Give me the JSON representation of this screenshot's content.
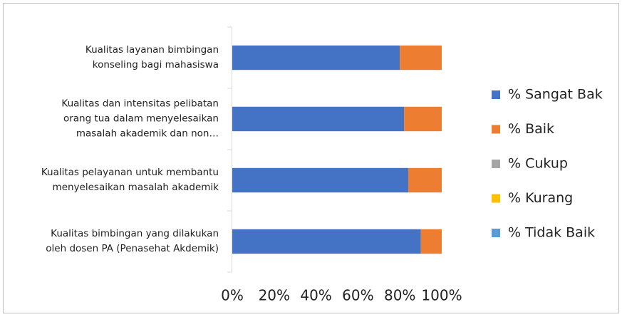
{
  "chart_data": {
    "type": "stacked_barh",
    "categories": [
      "Kualitas layanan bimbingan\nkonseling bagi mahasiswa",
      "Kualitas dan intensitas pelibatan\norang tua dalam menyelesaikan\nmasalah akademik dan non…",
      "Kualitas pelayanan untuk membantu\nmenyelesaikan masalah akademik",
      "Kualitas bimbingan yang dilakukan\noleh dosen PA (Penasehat Akdemik)"
    ],
    "series": [
      {
        "name": "% Sangat Bak",
        "color": "#4472c4",
        "values": [
          80,
          82,
          84,
          90
        ]
      },
      {
        "name": "% Baik",
        "color": "#ed7d31",
        "values": [
          20,
          18,
          16,
          10
        ]
      },
      {
        "name": "% Cukup",
        "color": "#a5a5a5",
        "values": [
          0,
          0,
          0,
          0
        ]
      },
      {
        "name": "% Kurang",
        "color": "#ffc000",
        "values": [
          0,
          0,
          0,
          0
        ]
      },
      {
        "name": "% Tidak Baik",
        "color": "#5b9bd5",
        "values": [
          0,
          0,
          0,
          0
        ]
      }
    ],
    "xlim": [
      0,
      100
    ],
    "xticks": [
      {
        "value": 0,
        "label": "0%"
      },
      {
        "value": 20,
        "label": "20%"
      },
      {
        "value": 40,
        "label": "40%"
      },
      {
        "value": 60,
        "label": "60%"
      },
      {
        "value": 80,
        "label": "80%"
      },
      {
        "value": 100,
        "label": "100%"
      }
    ],
    "grid": false,
    "legend": "right"
  }
}
